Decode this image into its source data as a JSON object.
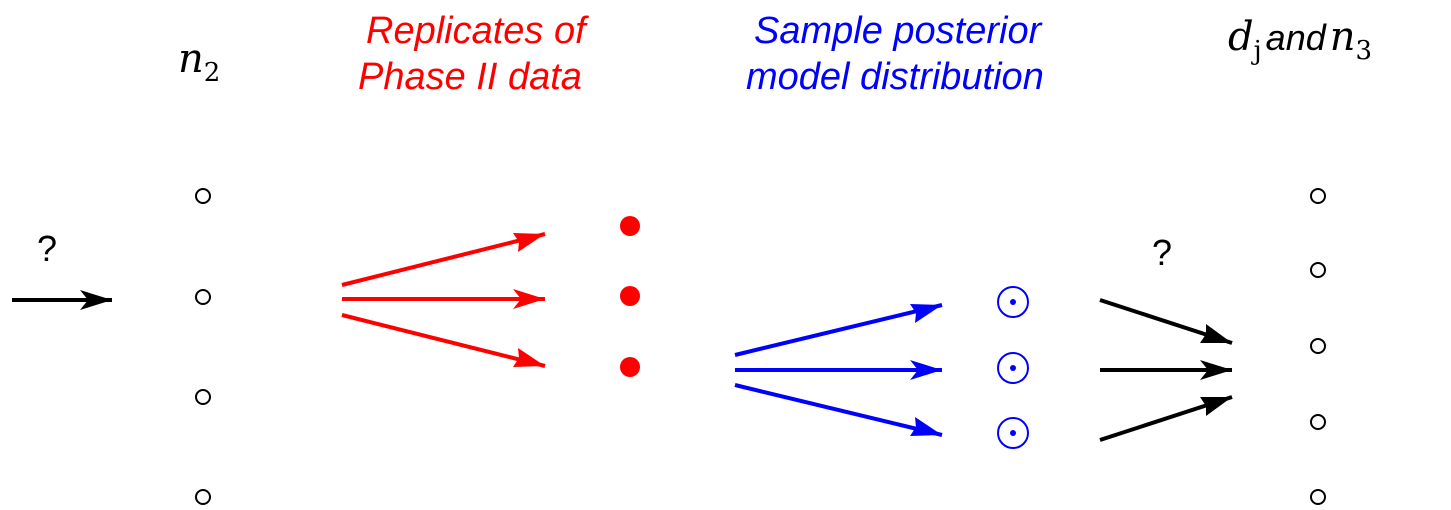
{
  "labels": {
    "n2": {
      "base": "n",
      "sub": "2"
    },
    "replicates": [
      "Replicates of",
      "Phase II data"
    ],
    "sample_posterior": [
      "Sample posterior",
      "model distribution"
    ],
    "dj": {
      "base": "d",
      "sub": "j"
    },
    "and_word": "and",
    "n3": {
      "base": "n",
      "sub": "3"
    },
    "question_left": "?",
    "question_right": "?"
  },
  "colors": {
    "red": "#ff0000",
    "blue": "#0000ff",
    "black": "#000000"
  }
}
